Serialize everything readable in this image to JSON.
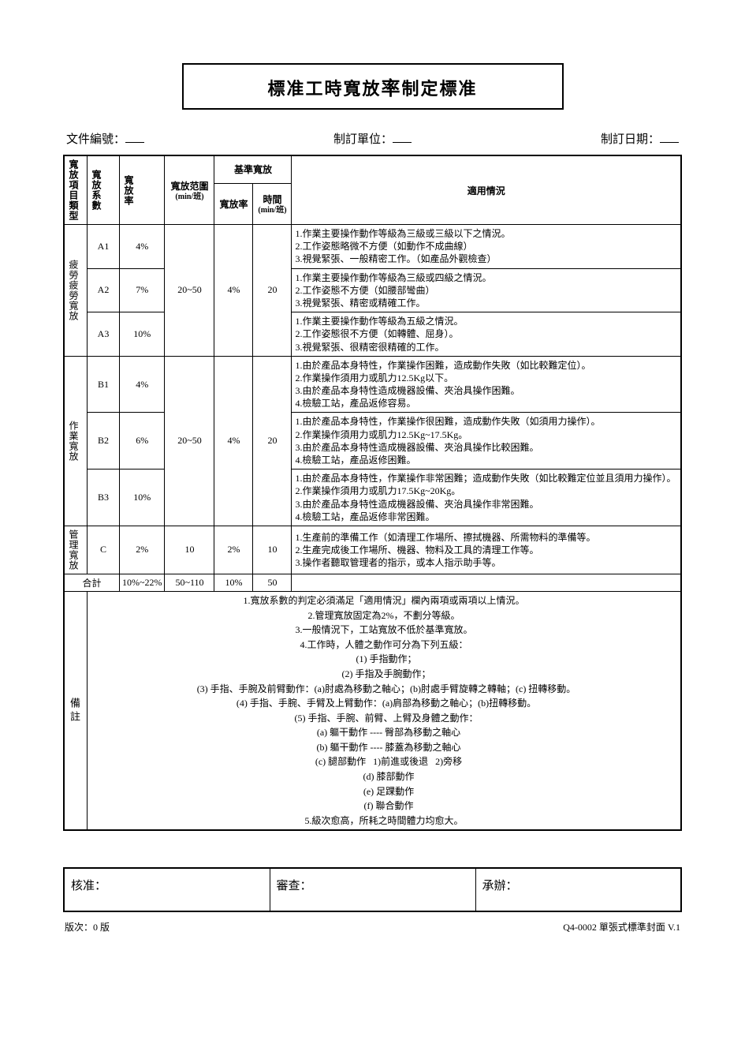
{
  "title_prefix": "標准工時寬放",
  "title_big": "率",
  "title_suffix": "制定標准",
  "header": {
    "doc_no_label": "文件編號：",
    "unit_label": "制訂單位：",
    "date_label": "制訂日期："
  },
  "columns": {
    "type": "寬放項目類型",
    "factor": "寬放系數",
    "rate": "寬放率",
    "range_label": "寬放范圍",
    "range_unit": "(min/班)",
    "std_group": "基準寬放",
    "std_rate": "寬放率",
    "std_time_label": "時間",
    "std_time_unit": "(min/班)",
    "app": "適用情況"
  },
  "groups": [
    {
      "type_label": "疲勞疲勞寬放",
      "range": "20~50",
      "std_rate": "4%",
      "std_time": "20",
      "rows": [
        {
          "factor": "A1",
          "rate": "4%",
          "apps": [
            "1.作業主要操作動作等級為三級或三級以下之情況。",
            "2.工作姿態略微不方便（如動作不成曲線）",
            "3.視覺緊張、一般精密工作。（如產品外觀檢查）"
          ]
        },
        {
          "factor": "A2",
          "rate": "7%",
          "apps": [
            "1.作業主要操作動作等級為三級或四級之情況。",
            "2.工作姿態不方便（如腰部彎曲）",
            "3.視覺緊張、精密或精確工作。"
          ]
        },
        {
          "factor": "A3",
          "rate": "10%",
          "apps": [
            "1.作業主要操作動作等級為五級之情況。",
            "2.工作姿態很不方便（如轉體、屈身）。",
            "3.視覺緊張、很精密很精確的工作。"
          ]
        }
      ]
    },
    {
      "type_label": "作業寬放",
      "range": "20~50",
      "std_rate": "4%",
      "std_time": "20",
      "rows": [
        {
          "factor": "B1",
          "rate": "4%",
          "apps": [
            "1.由於產品本身特性，作業操作困難，造成動作失敗（如比較難定位）。",
            "2.作業操作須用力或肌力12.5Kg以下。",
            "3.由於產品本身特性造成機器設備、夾治具操作困難。",
            "4.檢驗工站，產品返修容易。"
          ]
        },
        {
          "factor": "B2",
          "rate": "6%",
          "apps": [
            "1.由於產品本身特性，作業操作很困難，造成動作失敗（如須用力操作）。",
            "2.作業操作須用力或肌力12.5Kg~17.5Kg。",
            "3.由於產品本身特性造成機器設備、夾治具操作比較困難。",
            "4.檢驗工站，產品返修困難。"
          ]
        },
        {
          "factor": "B3",
          "rate": "10%",
          "apps": [
            "1.由於產品本身特性，作業操作非常困難；造成動作失敗（如比較難定位並且須用力操作）。",
            "2.作業操作須用力或肌力17.5Kg~20Kg。",
            "3.由於產品本身特性造成機器設備、夾治具操作非常困難。",
            "4.檢驗工站，產品返修非常困難。"
          ]
        }
      ]
    }
  ],
  "mgmt": {
    "type_label": "管理寬放",
    "factor": "C",
    "rate": "2%",
    "range": "10",
    "std_rate": "2%",
    "std_time": "10",
    "apps": [
      "1.生產前的準備工作（如清理工作場所、擦拭機器、所需物料的準備等。",
      "2.生產完成後工作場所、機器、物料及工具的清理工作等。",
      "3.操作者聽取管理者的指示，或本人指示助手等。"
    ]
  },
  "total": {
    "label": "合計",
    "rate": "10%~22%",
    "range": "50~110",
    "std_rate": "10%",
    "std_time": "50"
  },
  "notes_label": "備註",
  "notes": [
    "1.寬放系數的判定必須滿足「適用情況」欄內兩項或兩項以上情況。",
    "2.管理寬放固定為2%，不劃分等級。",
    "3.一般情況下，工站寬放不低於基準寬放。",
    "4.工作時，人體之動作可分為下列五級：",
    "  (1) 手指動作；",
    "  (2) 手指及手腕動作；",
    "  (3) 手指、手腕及前臂動作：(a)肘處為移動之軸心；(b)肘處手臂旋轉之轉軸；(c) 扭轉移動。",
    "  (4) 手指、手腕、手臂及上臂動作：(a)肩部為移動之軸心；(b)扭轉移動。",
    "  (5) 手指、手腕、前臂、上臂及身體之動作：",
    "    (a) 軀干動作 ---- 臀部為移動之軸心",
    "    (b) 軀干動作 ---- 膝蓋為移動之軸心",
    "    (c) 腿部動作   1)前進或後退   2)旁移",
    "    (d) 膝部動作",
    "    (e) 足踝動作",
    "    (f) 聯合動作",
    "5.級次愈高，所耗之時間體力均愈大。"
  ],
  "sign": {
    "approve": "核准：",
    "review": "審查：",
    "handle": "承辦："
  },
  "footer": {
    "version": "版次：0 版",
    "code": "Q4-0002 單張式標準封面   V.1"
  }
}
